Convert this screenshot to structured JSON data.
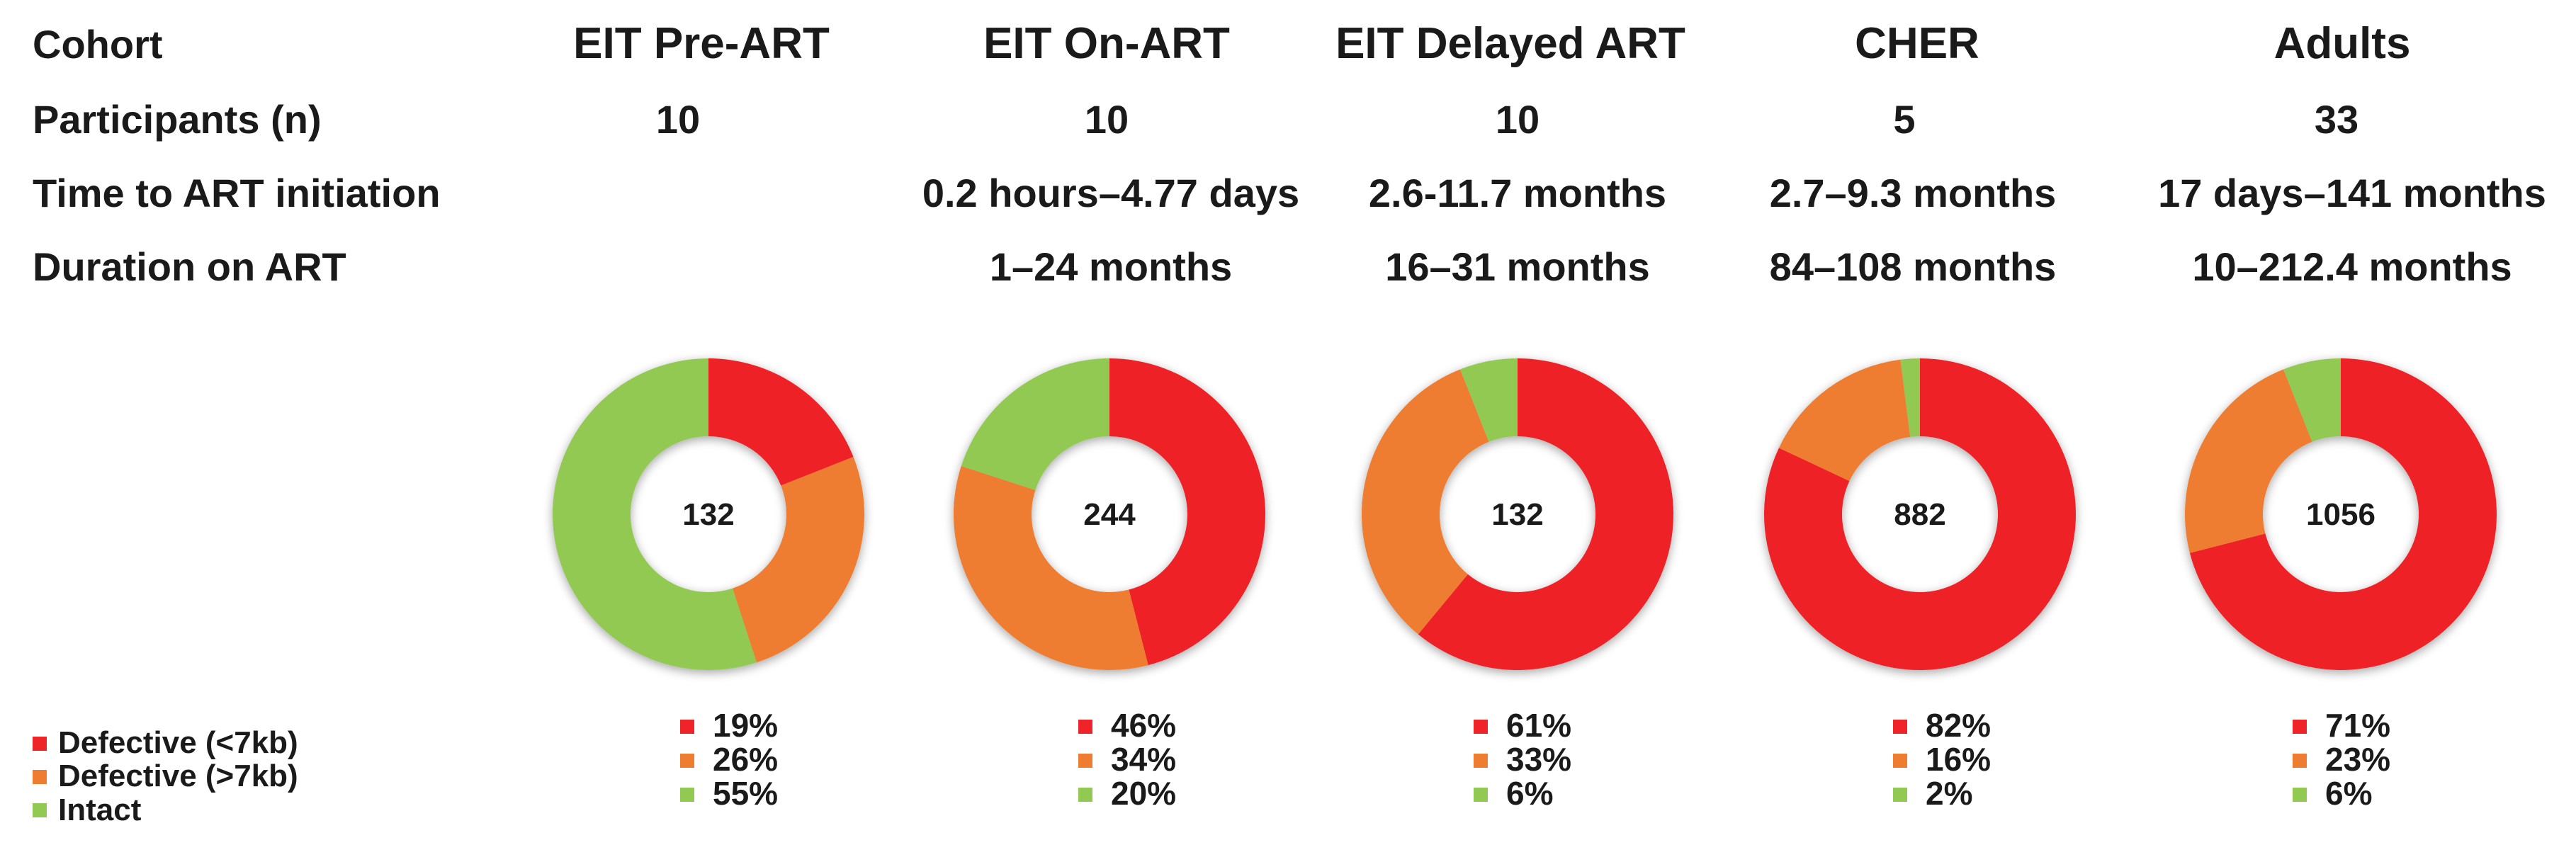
{
  "table": {
    "row_labels": {
      "cohort": "Cohort",
      "participants": "Participants (n)",
      "time_to_art": "Time to ART initiation",
      "duration": "Duration on ART"
    },
    "columns": [
      {
        "cohort": "EIT Pre-ART",
        "participants": "10",
        "time_to_art": "",
        "duration": ""
      },
      {
        "cohort": "EIT On-ART",
        "participants": "10",
        "time_to_art": "0.2 hours–4.77 days",
        "duration": "1–24 months"
      },
      {
        "cohort": "EIT Delayed ART",
        "participants": "10",
        "time_to_art": "2.6-11.7 months",
        "duration": "16–31 months"
      },
      {
        "cohort": "CHER",
        "participants": "5",
        "time_to_art": "2.7–9.3 months",
        "duration": "84–108 months"
      },
      {
        "cohort": "Adults",
        "participants": "33",
        "time_to_art": "17 days–141 months",
        "duration": "10–212.4 months"
      }
    ]
  },
  "legend": [
    {
      "label": "Defective (<7kb)",
      "color": "#ee2428"
    },
    {
      "label": "Defective (>7kb)",
      "color": "#ee7d31"
    },
    {
      "label": "Intact",
      "color": "#92c952"
    }
  ],
  "chart_data": {
    "type": "pie",
    "style": "donut",
    "categories": [
      "Defective (<7kb)",
      "Defective (>7kb)",
      "Intact"
    ],
    "colors": [
      "#ee2428",
      "#ee7d31",
      "#92c952"
    ],
    "charts": [
      {
        "cohort": "EIT Pre-ART",
        "total": "132",
        "values": [
          19,
          26,
          55
        ],
        "labels": [
          "19%",
          "26%",
          "55%"
        ]
      },
      {
        "cohort": "EIT On-ART",
        "total": "244",
        "values": [
          46,
          34,
          20
        ],
        "labels": [
          "46%",
          "34%",
          "20%"
        ]
      },
      {
        "cohort": "EIT Delayed ART",
        "total": "132",
        "values": [
          61,
          33,
          6
        ],
        "labels": [
          "61%",
          "33%",
          "6%"
        ]
      },
      {
        "cohort": "CHER",
        "total": "882",
        "values": [
          82,
          16,
          2
        ],
        "labels": [
          "82%",
          "16%",
          "2%"
        ]
      },
      {
        "cohort": "Adults",
        "total": "1056",
        "values": [
          71,
          23,
          6
        ],
        "labels": [
          "71%",
          "23%",
          "6%"
        ]
      }
    ]
  }
}
